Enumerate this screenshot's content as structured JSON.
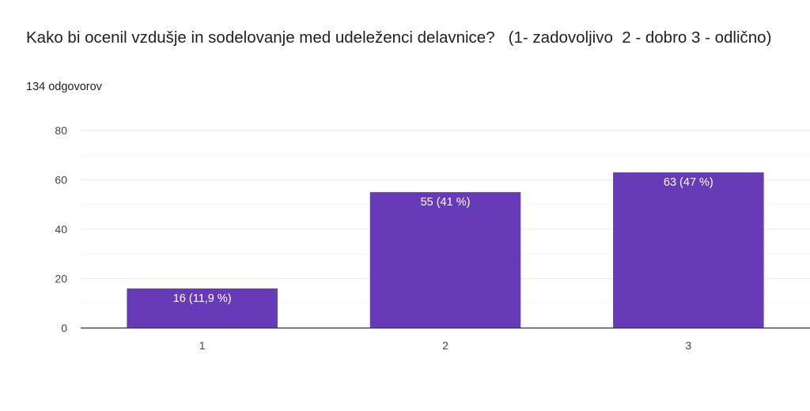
{
  "question": {
    "title": "Kako bi ocenil vzdušje in sodelovanje med udeleženci delavnice?   (1- zadovoljivo  2 - dobro 3 - odlično)",
    "responses": "134 odgovorov"
  },
  "colors": {
    "bar": "#673ab7",
    "grid": "#ebebeb",
    "axis": "#333333",
    "bar_label": "#ffffff"
  },
  "chart_data": {
    "type": "bar",
    "categories": [
      "1",
      "2",
      "3"
    ],
    "values": [
      16,
      55,
      63
    ],
    "data_labels": [
      "16 (11,9 %)",
      "55 (41 %)",
      "63 (47 %)"
    ],
    "yticks": [
      "0",
      "20",
      "40",
      "60",
      "80"
    ],
    "ylim": [
      0,
      80
    ],
    "grid": true,
    "legend": "none"
  }
}
